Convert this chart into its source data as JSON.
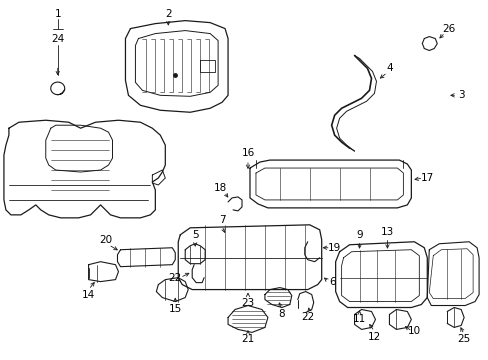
{
  "background_color": "#ffffff",
  "line_color": "#1a1a1a",
  "label_color": "#000000",
  "fig_width": 4.89,
  "fig_height": 3.6,
  "dpi": 100,
  "font_size": 7.5
}
